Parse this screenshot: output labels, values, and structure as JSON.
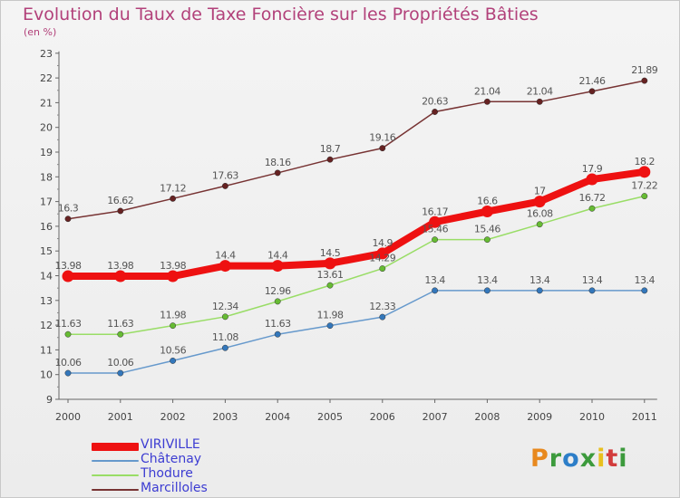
{
  "header": {
    "title": "Evolution du Taux de Taxe Foncière sur les Propriétés Bâties",
    "unit": "(en %)"
  },
  "brand": {
    "letters": [
      "P",
      "r",
      "o",
      "x",
      "i",
      "t",
      "i"
    ],
    "colors": [
      "#e8891e",
      "#3c9a3c",
      "#2d7ec8",
      "#3c9a3c",
      "#e8c01e",
      "#d23c3c",
      "#3c9a3c"
    ]
  },
  "legend": [
    {
      "label": "VIRIVILLE",
      "color": "#ee1111"
    },
    {
      "label": "Châtenay",
      "color": "#6699cc"
    },
    {
      "label": "Thodure",
      "color": "#99dd66"
    },
    {
      "label": "Marcilloles",
      "color": "#773333"
    }
  ],
  "chart_data": {
    "type": "line",
    "title": "Evolution du Taux de Taxe Foncière sur les Propriétés Bâties",
    "ylabel": "(en %)",
    "xlabel": "",
    "x": [
      "2000",
      "2001",
      "2002",
      "2003",
      "2004",
      "2005",
      "2006",
      "2007",
      "2008",
      "2009",
      "2010",
      "2011"
    ],
    "ylim": [
      9,
      23
    ],
    "yticks": [
      9,
      10,
      11,
      12,
      13,
      14,
      15,
      16,
      17,
      18,
      19,
      20,
      21,
      22,
      23
    ],
    "grid": false,
    "legend_position": "bottom-left",
    "series": [
      {
        "name": "Marcilloles",
        "color": "#773333",
        "marker": "#662222",
        "values": [
          16.3,
          16.62,
          17.12,
          17.63,
          18.16,
          18.7,
          19.16,
          20.63,
          21.04,
          21.04,
          21.46,
          21.89
        ],
        "labels": [
          "16.3",
          "16.62",
          "17.12",
          "17.63",
          "18.16",
          "18.7",
          "19.16",
          "20.63",
          "21.04",
          "21.04",
          "21.46",
          "21.89"
        ]
      },
      {
        "name": "Châtenay",
        "color": "#6699cc",
        "marker": "#3377bb",
        "values": [
          10.06,
          10.06,
          10.56,
          11.08,
          11.63,
          11.98,
          12.33,
          13.4,
          13.4,
          13.4,
          13.4,
          13.4
        ],
        "labels": [
          "10.06",
          "10.06",
          "10.56",
          "11.08",
          "11.63",
          "11.98",
          "12.33",
          "13.4",
          "13.4",
          "13.4",
          "13.4",
          "13.4"
        ]
      },
      {
        "name": "Thodure",
        "color": "#99dd66",
        "marker": "#66bb33",
        "values": [
          11.63,
          11.63,
          11.98,
          12.34,
          12.96,
          13.61,
          14.29,
          15.46,
          15.46,
          16.08,
          16.72,
          17.22
        ],
        "labels": [
          "11.63",
          "11.63",
          "11.98",
          "12.34",
          "12.96",
          "13.61",
          "14.29",
          "15.46",
          "15.46",
          "16.08",
          "16.72",
          "17.22"
        ]
      },
      {
        "name": "VIRIVILLE",
        "color": "#ee1111",
        "marker": "#ee1111",
        "values": [
          13.98,
          13.98,
          13.98,
          14.4,
          14.4,
          14.5,
          14.9,
          16.17,
          16.6,
          17,
          17.9,
          18.2
        ],
        "labels": [
          "13.98",
          "13.98",
          "13.98",
          "14.4",
          "14.4",
          "14.5",
          "14.9",
          "16.17",
          "16.6",
          "17",
          "17.9",
          "18.2"
        ]
      }
    ]
  }
}
